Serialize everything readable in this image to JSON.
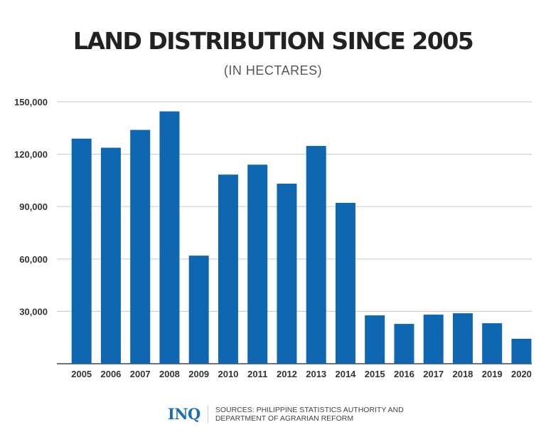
{
  "chart_data": {
    "type": "bar",
    "title": "LAND DISTRIBUTION SINCE 2005",
    "subtitle": "(IN HECTARES)",
    "xlabel": "",
    "ylabel": "",
    "categories": [
      "2005",
      "2006",
      "2007",
      "2008",
      "2009",
      "2010",
      "2011",
      "2012",
      "2013",
      "2014",
      "2015",
      "2016",
      "2017",
      "2018",
      "2019",
      "2020"
    ],
    "values": [
      128900,
      123700,
      133900,
      144500,
      61900,
      108300,
      114000,
      103100,
      124700,
      92100,
      27700,
      22800,
      28100,
      28900,
      23200,
      14300
    ],
    "ylim": [
      0,
      150000
    ],
    "yticks": [
      30000,
      60000,
      90000,
      120000,
      150000
    ],
    "ytick_labels": [
      "30,000",
      "60,000",
      "90,000",
      "120,000",
      "150,000"
    ],
    "grid": true,
    "bar_color": "#0f67b1"
  },
  "footer": {
    "logo": "INQ",
    "source_line1": "SOURCES: PHILIPPINE STATISTICS AUTHORITY AND",
    "source_line2": "DEPARTMENT OF AGRARIAN REFORM"
  }
}
